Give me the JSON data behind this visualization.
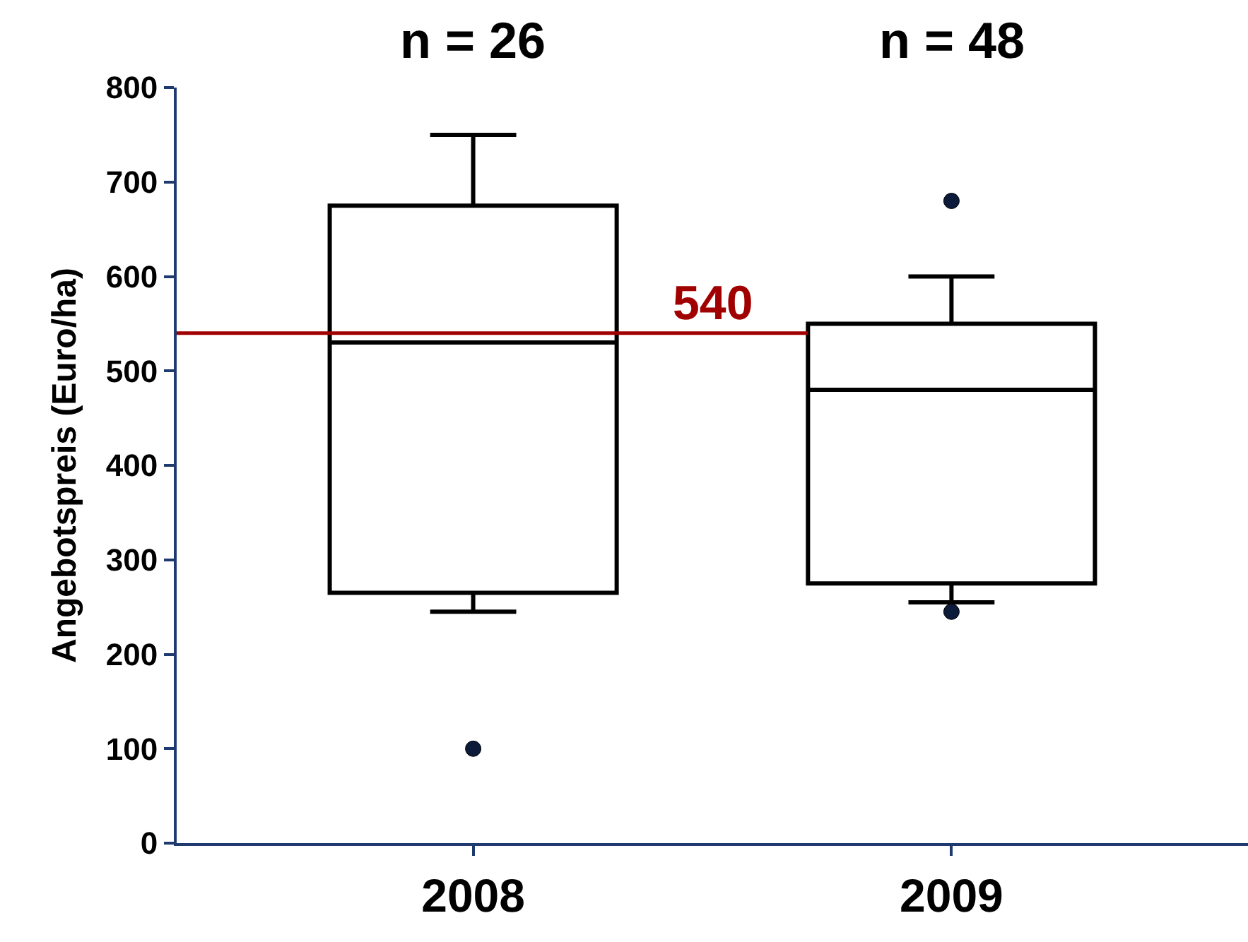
{
  "chart_data": {
    "type": "box",
    "categories": [
      "2008",
      "2009"
    ],
    "ylabel": "Angebotspreis (Euro/ha)",
    "ylim": [
      0,
      800
    ],
    "yticks": [
      0,
      100,
      200,
      300,
      400,
      500,
      600,
      700,
      800
    ],
    "grid": false,
    "color": "#000000",
    "boxes": [
      {
        "low": 245,
        "q1": 265,
        "median": 530,
        "q3": 675,
        "high": 750,
        "outliers": [
          100
        ]
      },
      {
        "low": 255,
        "q1": 275,
        "median": 480,
        "q3": 550,
        "high": 600,
        "outliers": [
          680,
          245
        ]
      }
    ],
    "marker": "circle",
    "ref_lines": [
      {
        "axis": "y",
        "value": 540,
        "label": "540",
        "color": "#a00000"
      }
    ],
    "annotations": [
      "n = 26",
      "n = 48"
    ]
  }
}
